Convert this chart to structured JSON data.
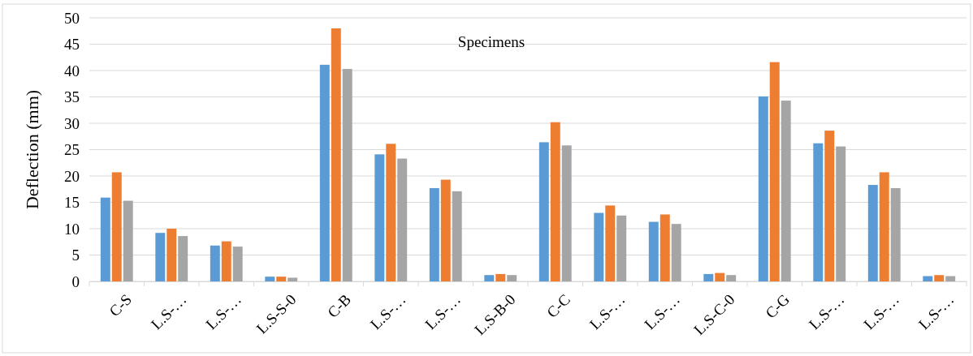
{
  "chart_data": {
    "type": "bar",
    "title": "Specimens",
    "ylabel": "Deflection (mm)",
    "categories": [
      "C-S",
      "L.S-…",
      "L.S-…",
      "L.S-S-0",
      "C-B",
      "L.S-…",
      "L.S-…",
      "L.S-B-0",
      "C-C",
      "L.S-…",
      "L.S-…",
      "L.S-C-0",
      "C-G",
      "L.S-…",
      "L.S-…",
      "L.S-…"
    ],
    "series": [
      {
        "color": "#5b9bd5",
        "values": [
          15.9,
          9.2,
          6.8,
          0.9,
          41.1,
          24.1,
          17.7,
          1.2,
          26.4,
          13.0,
          11.3,
          1.4,
          35.1,
          26.2,
          18.3,
          1.0
        ]
      },
      {
        "color": "#ed7d31",
        "values": [
          20.7,
          10.0,
          7.6,
          0.9,
          48.0,
          26.1,
          19.3,
          1.4,
          30.2,
          14.4,
          12.7,
          1.6,
          41.6,
          28.6,
          20.7,
          1.2
        ]
      },
      {
        "color": "#a5a5a5",
        "values": [
          15.3,
          8.6,
          6.6,
          0.7,
          40.3,
          23.3,
          17.1,
          1.2,
          25.8,
          12.5,
          10.9,
          1.2,
          34.3,
          25.6,
          17.7,
          1.0
        ]
      }
    ],
    "ylim": [
      0,
      50
    ],
    "yticks": [
      0,
      5,
      10,
      15,
      20,
      25,
      30,
      35,
      40,
      45,
      50
    ],
    "grid": "y",
    "legend": false
  }
}
